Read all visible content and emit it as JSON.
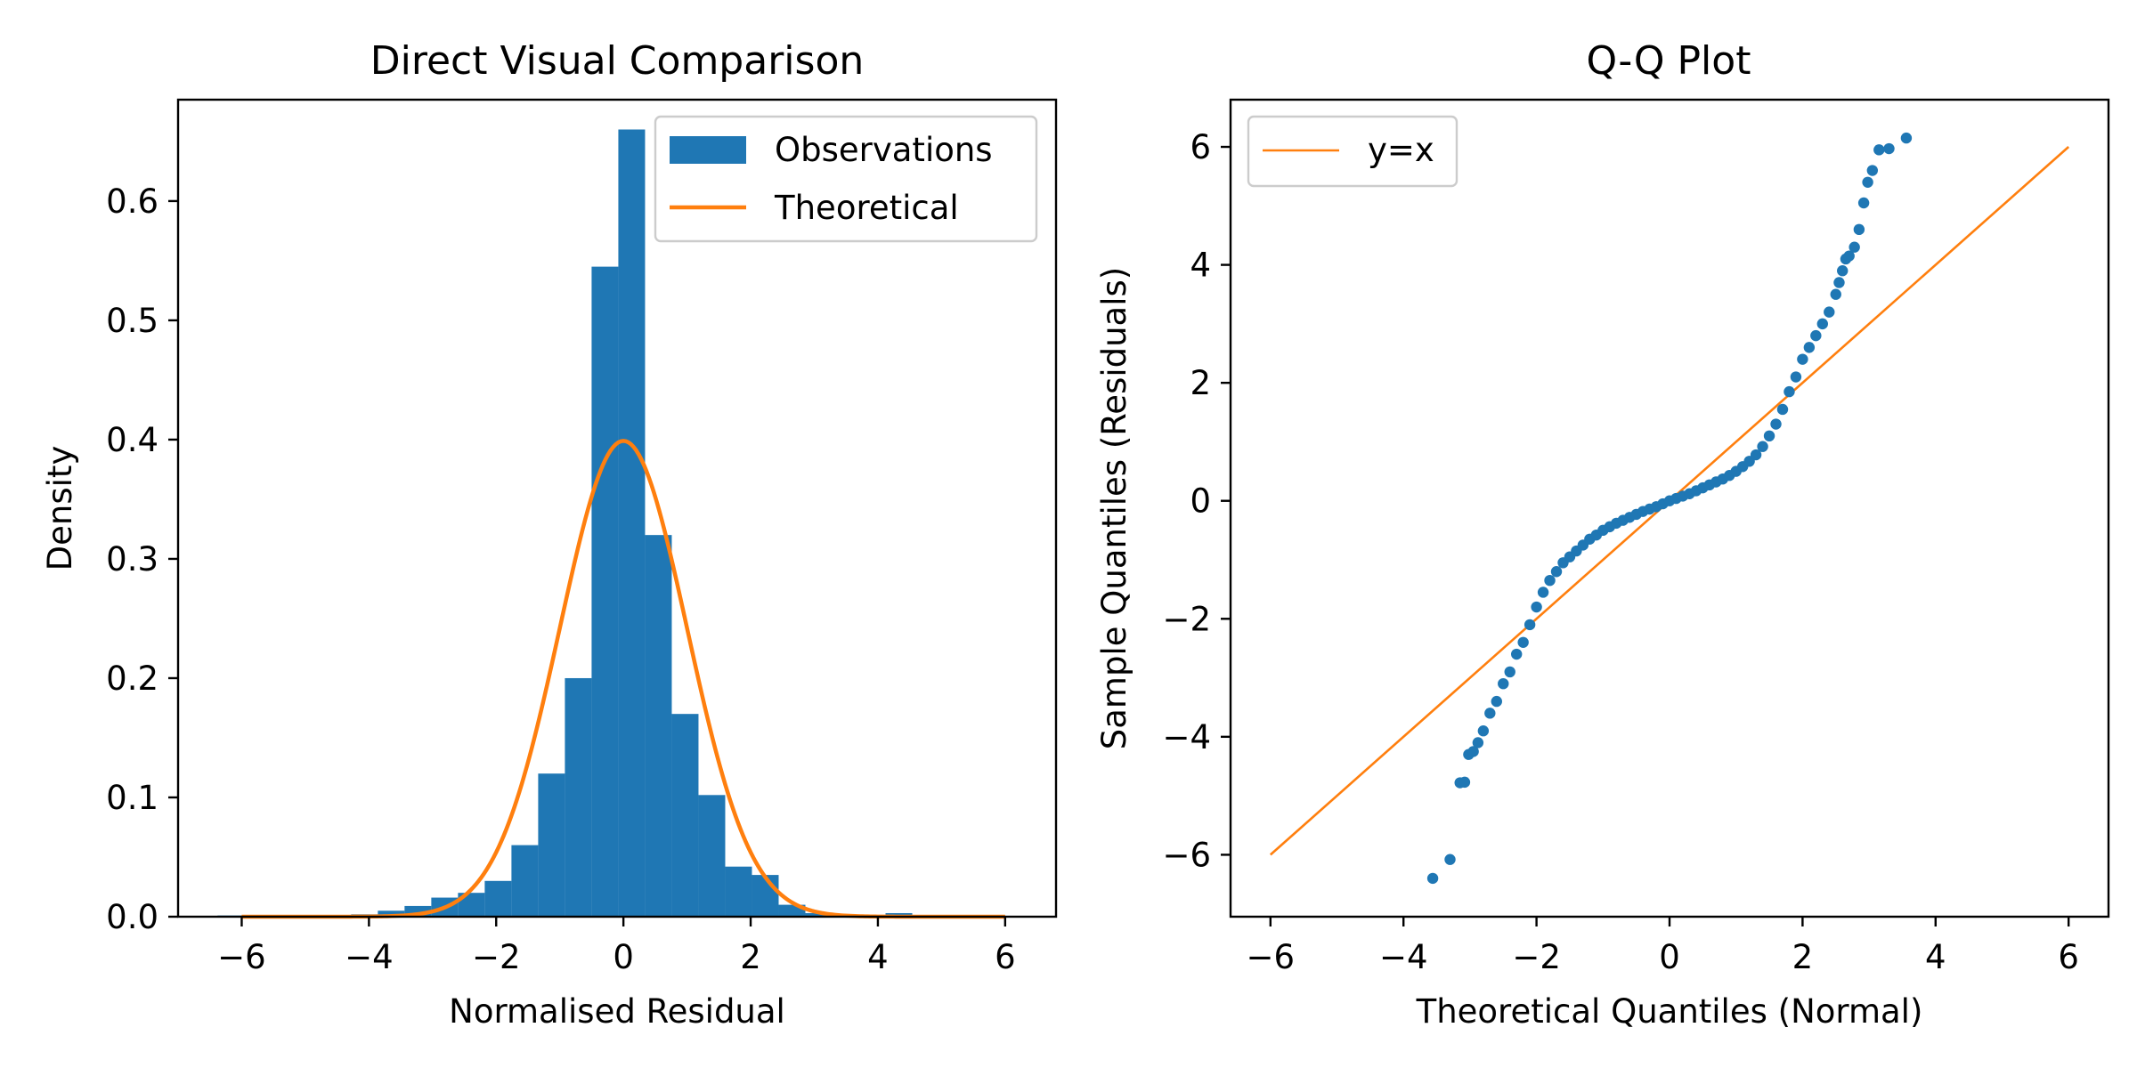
{
  "chart_data": [
    {
      "type": "bar",
      "title": "Direct Visual Comparison",
      "xlabel": "Normalised Residual",
      "ylabel": "Density",
      "xlim": [
        -7,
        6.8
      ],
      "ylim": [
        0,
        0.685
      ],
      "xticks": [
        -6,
        -4,
        -2,
        0,
        2,
        4,
        6
      ],
      "xtick_labels": [
        "−6",
        "−4",
        "−2",
        "0",
        "2",
        "4",
        "6"
      ],
      "yticks": [
        0.0,
        0.1,
        0.2,
        0.3,
        0.4,
        0.5,
        0.6
      ],
      "ytick_labels": [
        "0.0",
        "0.1",
        "0.2",
        "0.3",
        "0.4",
        "0.5",
        "0.6"
      ],
      "grid": false,
      "legend_position": "top-right",
      "bin_width": 0.42,
      "histogram": {
        "name": "Observations",
        "color": "#1f77b4",
        "bin_lefts": [
          -6.38,
          -5.96,
          -5.54,
          -5.12,
          -4.7,
          -4.28,
          -3.86,
          -3.44,
          -3.02,
          -2.6,
          -2.18,
          -1.76,
          -1.34,
          -0.92,
          -0.5,
          -0.08,
          0.34,
          0.76,
          1.18,
          1.6,
          2.02,
          2.44,
          2.86,
          3.28,
          3.7,
          4.12
        ],
        "densities": [
          0.001,
          0.0,
          0.0,
          0.0,
          0.0,
          0.002,
          0.005,
          0.009,
          0.016,
          0.02,
          0.03,
          0.06,
          0.12,
          0.2,
          0.545,
          0.66,
          0.32,
          0.17,
          0.102,
          0.042,
          0.035,
          0.01,
          0.003,
          0.001,
          0.001,
          0.003
        ]
      },
      "curve": {
        "name": "Theoretical",
        "color": "#ff7f0e",
        "distribution": "standard normal",
        "x_range": [
          -6,
          6
        ]
      }
    },
    {
      "type": "scatter",
      "title": "Q-Q Plot",
      "xlabel": "Theoretical Quantiles (Normal)",
      "ylabel": "Sample Quantiles (Residuals)",
      "xlim": [
        -6.6,
        6.6
      ],
      "ylim": [
        -7.05,
        6.8
      ],
      "xticks": [
        -6,
        -4,
        -2,
        0,
        2,
        4,
        6
      ],
      "xtick_labels": [
        "−6",
        "−4",
        "−2",
        "0",
        "2",
        "4",
        "6"
      ],
      "yticks": [
        -6,
        -4,
        -2,
        0,
        2,
        4,
        6
      ],
      "ytick_labels": [
        "−6",
        "−4",
        "−2",
        "0",
        "2",
        "4",
        "6"
      ],
      "grid": false,
      "legend_position": "top-left",
      "points": {
        "color": "#1f77b4",
        "x": [
          -3.56,
          -3.3,
          -3.15,
          -3.08,
          -3.02,
          -2.95,
          -2.88,
          -2.8,
          -2.7,
          -2.6,
          -2.5,
          -2.4,
          -2.3,
          -2.2,
          -2.1,
          -2.0,
          -1.9,
          -1.8,
          -1.7,
          -1.6,
          -1.5,
          -1.4,
          -1.3,
          -1.2,
          -1.1,
          -1.0,
          -0.9,
          -0.8,
          -0.7,
          -0.6,
          -0.5,
          -0.4,
          -0.3,
          -0.2,
          -0.1,
          0.0,
          0.1,
          0.2,
          0.3,
          0.4,
          0.5,
          0.6,
          0.7,
          0.8,
          0.9,
          1.0,
          1.1,
          1.2,
          1.3,
          1.4,
          1.5,
          1.6,
          1.7,
          1.8,
          1.9,
          2.0,
          2.1,
          2.2,
          2.3,
          2.4,
          2.5,
          2.55,
          2.6,
          2.65,
          2.7,
          2.78,
          2.85,
          2.92,
          2.98,
          3.05,
          3.15,
          3.3,
          3.56
        ],
        "y": [
          -6.4,
          -6.08,
          -4.78,
          -4.77,
          -4.3,
          -4.25,
          -4.1,
          -3.9,
          -3.6,
          -3.4,
          -3.1,
          -2.9,
          -2.6,
          -2.4,
          -2.1,
          -1.8,
          -1.55,
          -1.35,
          -1.2,
          -1.05,
          -0.95,
          -0.85,
          -0.75,
          -0.65,
          -0.58,
          -0.5,
          -0.44,
          -0.38,
          -0.33,
          -0.28,
          -0.23,
          -0.18,
          -0.14,
          -0.1,
          -0.05,
          0.0,
          0.04,
          0.08,
          0.12,
          0.17,
          0.22,
          0.27,
          0.32,
          0.37,
          0.43,
          0.5,
          0.58,
          0.67,
          0.78,
          0.92,
          1.1,
          1.3,
          1.55,
          1.85,
          2.1,
          2.4,
          2.6,
          2.8,
          3.0,
          3.2,
          3.5,
          3.7,
          3.9,
          4.1,
          4.15,
          4.3,
          4.6,
          5.05,
          5.4,
          5.6,
          5.95,
          5.97,
          6.15
        ]
      },
      "line": {
        "name": "y=x",
        "color": "#ff7f0e",
        "x": [
          -6,
          6
        ],
        "y": [
          -6,
          6
        ]
      }
    }
  ]
}
